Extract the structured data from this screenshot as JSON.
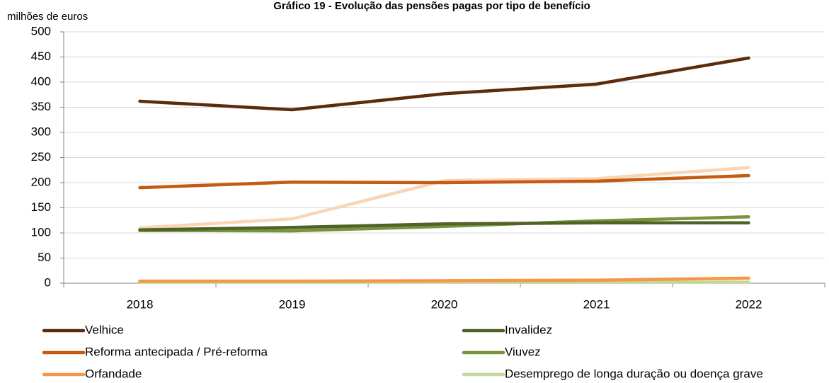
{
  "chart_data": {
    "type": "line",
    "title": "Gráfico 19 - Evolução das pensões pagas por tipo de benefício",
    "y_label": "milhões de euros",
    "categories": [
      "2018",
      "2019",
      "2020",
      "2021",
      "2022"
    ],
    "series": [
      {
        "name": "Velhice",
        "color": "#5b2c0c",
        "values": [
          362,
          345,
          377,
          396,
          448
        ]
      },
      {
        "name": "Invalidez",
        "color": "#4f6228",
        "values": [
          106,
          111,
          118,
          120,
          120
        ]
      },
      {
        "name": "Reforma antecipada / Pré-reforma",
        "color": "#c55a11",
        "values": [
          190,
          201,
          200,
          203,
          214
        ]
      },
      {
        "name": "Viuvez",
        "color": "#77933c",
        "values": [
          105,
          104,
          113,
          124,
          132
        ]
      },
      {
        "name": "Orfandade",
        "color": "#f79646",
        "values": [
          4,
          4,
          5,
          6,
          10
        ]
      },
      {
        "name": "Desemprego de longa duração ou doença grave",
        "color": "#c3d69b",
        "values": [
          2,
          2,
          2,
          2,
          2
        ]
      },
      {
        "color": "#fbd4b4",
        "values": [
          110,
          128,
          204,
          208,
          230
        ]
      }
    ],
    "ylim": [
      0,
      500
    ],
    "yticks": [
      0,
      50,
      100,
      150,
      200,
      250,
      300,
      350,
      400,
      450,
      500
    ],
    "grid": true,
    "legend": "bottom"
  }
}
